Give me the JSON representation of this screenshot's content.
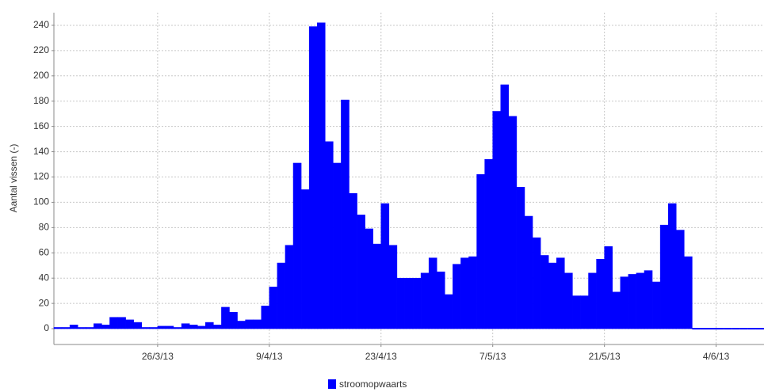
{
  "chart_data": {
    "type": "bar",
    "y_label": "Aantal vissen (-)",
    "x": [
      "2013-03-13",
      "2013-03-14",
      "2013-03-15",
      "2013-03-16",
      "2013-03-17",
      "2013-03-18",
      "2013-03-19",
      "2013-03-20",
      "2013-03-21",
      "2013-03-22",
      "2013-03-23",
      "2013-03-24",
      "2013-03-25",
      "2013-03-26",
      "2013-03-27",
      "2013-03-28",
      "2013-03-29",
      "2013-03-30",
      "2013-03-31",
      "2013-04-01",
      "2013-04-02",
      "2013-04-03",
      "2013-04-04",
      "2013-04-05",
      "2013-04-06",
      "2013-04-07",
      "2013-04-08",
      "2013-04-09",
      "2013-04-10",
      "2013-04-11",
      "2013-04-12",
      "2013-04-13",
      "2013-04-14",
      "2013-04-15",
      "2013-04-16",
      "2013-04-17",
      "2013-04-18",
      "2013-04-19",
      "2013-04-20",
      "2013-04-21",
      "2013-04-22",
      "2013-04-23",
      "2013-04-24",
      "2013-04-25",
      "2013-04-26",
      "2013-04-27",
      "2013-04-28",
      "2013-04-29",
      "2013-04-30",
      "2013-05-01",
      "2013-05-02",
      "2013-05-03",
      "2013-05-04",
      "2013-05-05",
      "2013-05-06",
      "2013-05-07",
      "2013-05-08",
      "2013-05-09",
      "2013-05-10",
      "2013-05-11",
      "2013-05-12",
      "2013-05-13",
      "2013-05-14",
      "2013-05-15",
      "2013-05-16",
      "2013-05-17",
      "2013-05-18",
      "2013-05-19",
      "2013-05-20",
      "2013-05-21",
      "2013-05-22",
      "2013-05-23",
      "2013-05-24",
      "2013-05-25",
      "2013-05-26",
      "2013-05-27",
      "2013-05-28",
      "2013-05-29",
      "2013-05-30",
      "2013-05-31",
      "2013-06-01",
      "2013-06-02",
      "2013-06-03",
      "2013-06-04",
      "2013-06-05",
      "2013-06-06",
      "2013-06-07",
      "2013-06-08",
      "2013-06-09"
    ],
    "series": [
      {
        "name": "stroomopwaarts",
        "color": "#0000ff",
        "values": [
          1,
          1,
          3,
          1,
          1,
          4,
          3,
          9,
          9,
          7,
          5,
          1,
          1,
          2,
          2,
          1,
          4,
          3,
          2,
          5,
          3,
          17,
          13,
          6,
          7,
          7,
          18,
          33,
          52,
          66,
          131,
          110,
          239,
          242,
          148,
          131,
          181,
          107,
          90,
          79,
          67,
          99,
          66,
          40,
          40,
          40,
          44,
          56,
          45,
          27,
          51,
          56,
          57,
          122,
          134,
          172,
          193,
          168,
          112,
          89,
          72,
          58,
          52,
          56,
          44,
          26,
          26,
          44,
          55,
          65,
          29,
          41,
          43,
          44,
          46,
          37,
          82,
          99,
          78,
          57,
          0,
          0,
          0,
          0,
          0,
          0,
          0,
          0,
          0
        ]
      }
    ],
    "xlim": [
      "2013-03-13",
      "2013-06-10"
    ],
    "xticks": [
      {
        "value": "2013-03-26",
        "label": "26/3/13"
      },
      {
        "value": "2013-04-09",
        "label": "9/4/13"
      },
      {
        "value": "2013-04-23",
        "label": "23/4/13"
      },
      {
        "value": "2013-05-07",
        "label": "7/5/13"
      },
      {
        "value": "2013-05-21",
        "label": "21/5/13"
      },
      {
        "value": "2013-06-04",
        "label": "4/6/13"
      }
    ],
    "ylim": [
      -12.5,
      250
    ],
    "yticks": [
      0,
      20,
      40,
      60,
      80,
      100,
      120,
      140,
      160,
      180,
      200,
      220,
      240
    ],
    "grid": true,
    "legend": "bottom"
  }
}
